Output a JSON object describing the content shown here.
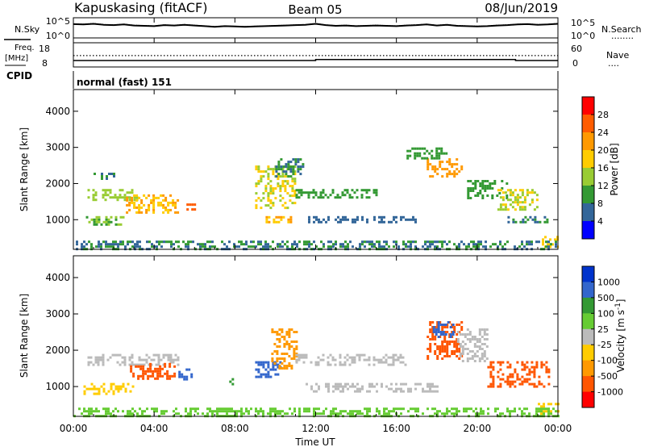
{
  "header": {
    "station": "Kapuskasing (fitACF)",
    "beam": "Beam 05",
    "date": "08/Jun/2019"
  },
  "side_labels": {
    "nsky": "N.Sky",
    "freq": "Freq.",
    "freq_unit": "[MHz]",
    "cpid": "CPID",
    "nsearch": "N.Search",
    "nave": "Nave",
    "nsearch_dots": "........",
    "nave_dots": "...."
  },
  "cpid_text": "normal (fast) 151",
  "chart_data": [
    {
      "type": "line",
      "name": "noise",
      "left_ticks": [
        "10^5",
        "10^0"
      ],
      "right_ticks": [
        "10^5",
        "10^0"
      ],
      "x_hours": [
        0,
        0.5,
        1,
        1.5,
        2,
        2.5,
        3,
        3.5,
        4,
        4.5,
        5,
        5.5,
        6,
        6.5,
        7,
        7.5,
        8,
        8.5,
        9,
        9.5,
        10,
        10.5,
        11,
        11.5,
        12,
        12.5,
        13,
        13.5,
        14,
        14.5,
        15,
        15.5,
        16,
        16.5,
        17,
        17.5,
        18,
        18.5,
        19,
        19.5,
        20,
        20.5,
        21,
        21.5,
        22,
        22.5,
        23,
        23.5,
        24
      ],
      "nsky_log": [
        3.6,
        3.5,
        3.7,
        3.4,
        3.3,
        3.5,
        3.2,
        3.1,
        3.0,
        3.3,
        3.2,
        3.4,
        3.2,
        3.0,
        2.8,
        3.0,
        2.9,
        2.8,
        2.9,
        3.0,
        3.1,
        3.2,
        3.3,
        3.4,
        3.7,
        3.3,
        3.1,
        3.2,
        3.0,
        3.1,
        3.2,
        3.1,
        3.0,
        3.2,
        3.3,
        3.5,
        3.2,
        3.4,
        3.1,
        3.0,
        2.9,
        3.0,
        3.2,
        3.3,
        3.5,
        3.6,
        3.4,
        3.5,
        3.7
      ],
      "nsearch_log": [
        3.7,
        3.6,
        3.8,
        3.5,
        3.4,
        3.6,
        3.3,
        3.2,
        3.1,
        3.4,
        3.3,
        3.5,
        3.3,
        3.1,
        2.9,
        3.1,
        3.0,
        2.9,
        3.0,
        3.1,
        3.2,
        3.3,
        3.4,
        3.5,
        3.8,
        3.4,
        3.2,
        3.3,
        3.1,
        3.2,
        3.3,
        3.2,
        3.1,
        3.3,
        3.4,
        3.6,
        3.3,
        3.5,
        3.2,
        3.1,
        3.0,
        3.1,
        3.3,
        3.4,
        3.6,
        3.7,
        3.5,
        3.6,
        3.8
      ]
    },
    {
      "type": "line",
      "name": "frequency",
      "left_ticks": [
        "18",
        "8"
      ],
      "right_ticks": [
        "60",
        "0"
      ],
      "freq_mhz_steps": [
        [
          0,
          10.3
        ],
        [
          12,
          10.8
        ],
        [
          21.9,
          10.3
        ],
        [
          24,
          10.3
        ]
      ],
      "nave_value": 28
    },
    {
      "type": "heatmap",
      "name": "power",
      "ylabel": "Slant Range [km]",
      "yticks": [
        "4000",
        "3000",
        "2000",
        "1000"
      ],
      "ytick_values": [
        4000,
        3000,
        2000,
        1000
      ],
      "ylim": [
        180,
        4600
      ],
      "xlim": [
        0,
        24
      ],
      "colorbar_label": "Power [dB]",
      "colorbar_ticks": [
        "28",
        "24",
        "20",
        "16",
        "12",
        "8",
        "4"
      ],
      "colorbar_colors": [
        "#ff0000",
        "#ff5c00",
        "#ff9900",
        "#ffcc00",
        "#99cc33",
        "#339933",
        "#336699",
        "#0000ff"
      ],
      "regions": [
        {
          "t": [
            0.7,
            3.2
          ],
          "r": [
            1550,
            1850
          ],
          "v": 14
        },
        {
          "t": [
            2.6,
            5.2
          ],
          "r": [
            1200,
            1700
          ],
          "v": 20
        },
        {
          "t": [
            5.6,
            6.0
          ],
          "r": [
            1250,
            1450
          ],
          "v": 26
        },
        {
          "t": [
            0.5,
            2.5
          ],
          "r": [
            850,
            1100
          ],
          "v": 12
        },
        {
          "t": [
            1.0,
            2.0
          ],
          "r": [
            2100,
            2300
          ],
          "v": 8
        },
        {
          "t": [
            9.0,
            11.0
          ],
          "r": [
            1350,
            2500
          ],
          "v": 16
        },
        {
          "t": [
            10.0,
            11.4
          ],
          "r": [
            2200,
            2700
          ],
          "v": 8
        },
        {
          "t": [
            9.4,
            10.8
          ],
          "r": [
            900,
            1100
          ],
          "v": 20
        },
        {
          "t": [
            11.0,
            15.0
          ],
          "r": [
            1600,
            1850
          ],
          "v": 10
        },
        {
          "t": [
            11.5,
            17.0
          ],
          "r": [
            900,
            1100
          ],
          "v": 6
        },
        {
          "t": [
            17.5,
            19.2
          ],
          "r": [
            2200,
            2700
          ],
          "v": 22
        },
        {
          "t": [
            16.5,
            18.5
          ],
          "r": [
            2700,
            3000
          ],
          "v": 10
        },
        {
          "t": [
            19.5,
            21.5
          ],
          "r": [
            1600,
            2100
          ],
          "v": 10
        },
        {
          "t": [
            21.0,
            23.0
          ],
          "r": [
            1300,
            1850
          ],
          "v": 16
        },
        {
          "t": [
            21.5,
            23.5
          ],
          "r": [
            900,
            1100
          ],
          "v": 8
        },
        {
          "t": [
            23.2,
            24.0
          ],
          "r": [
            250,
            550
          ],
          "v": 18
        },
        {
          "t": [
            0.0,
            24.0
          ],
          "r": [
            200,
            420
          ],
          "v": 8
        }
      ]
    },
    {
      "type": "heatmap",
      "name": "velocity",
      "ylabel": "Slant Range [km]",
      "yticks": [
        "4000",
        "3000",
        "2000",
        "1000"
      ],
      "ytick_values": [
        4000,
        3000,
        2000,
        1000
      ],
      "ylim": [
        180,
        4600
      ],
      "xlim": [
        0,
        24
      ],
      "colorbar_label": "Velocity [m s^-1]",
      "colorbar_ticks": [
        "1000",
        "500",
        "100",
        "25",
        "-25",
        "-100",
        "-500",
        "-1000"
      ],
      "colorbar_colors": [
        "#0033cc",
        "#3366cc",
        "#339933",
        "#66cc33",
        "#bbbbbb",
        "#ffcc00",
        "#ff9900",
        "#ff5500",
        "#ff0000"
      ],
      "regions": [
        {
          "t": [
            0.7,
            5.2
          ],
          "r": [
            1600,
            1900
          ],
          "v": 0
        },
        {
          "t": [
            2.8,
            5.0
          ],
          "r": [
            1200,
            1650
          ],
          "v": -500
        },
        {
          "t": [
            5.2,
            5.9
          ],
          "r": [
            1200,
            1500
          ],
          "v": 300
        },
        {
          "t": [
            0.5,
            3.0
          ],
          "r": [
            800,
            1100
          ],
          "v": -60
        },
        {
          "t": [
            7.6,
            7.9
          ],
          "r": [
            1100,
            1300
          ],
          "v": 150
        },
        {
          "t": [
            9.0,
            10.2
          ],
          "r": [
            1300,
            1700
          ],
          "v": 300
        },
        {
          "t": [
            9.8,
            11.0
          ],
          "r": [
            1500,
            2600
          ],
          "v": -200
        },
        {
          "t": [
            11.0,
            16.5
          ],
          "r": [
            1600,
            1900
          ],
          "v": 0
        },
        {
          "t": [
            11.5,
            18.0
          ],
          "r": [
            900,
            1100
          ],
          "v": 0
        },
        {
          "t": [
            17.5,
            19.2
          ],
          "r": [
            1800,
            2800
          ],
          "v": -500
        },
        {
          "t": [
            17.8,
            18.8
          ],
          "r": [
            2400,
            2800
          ],
          "v": 300
        },
        {
          "t": [
            19.0,
            20.5
          ],
          "r": [
            1700,
            2600
          ],
          "v": 0
        },
        {
          "t": [
            20.5,
            23.5
          ],
          "r": [
            1000,
            1700
          ],
          "v": -400
        },
        {
          "t": [
            23.0,
            24.0
          ],
          "r": [
            250,
            550
          ],
          "v": -80
        },
        {
          "t": [
            0.0,
            24.0
          ],
          "r": [
            200,
            420
          ],
          "v": 40
        }
      ]
    }
  ],
  "x_axis": {
    "label": "Time UT",
    "ticks": [
      "00:00",
      "04:00",
      "08:00",
      "12:00",
      "16:00",
      "20:00",
      "00:00"
    ],
    "tick_hours": [
      0,
      4,
      8,
      12,
      16,
      20,
      24
    ]
  }
}
